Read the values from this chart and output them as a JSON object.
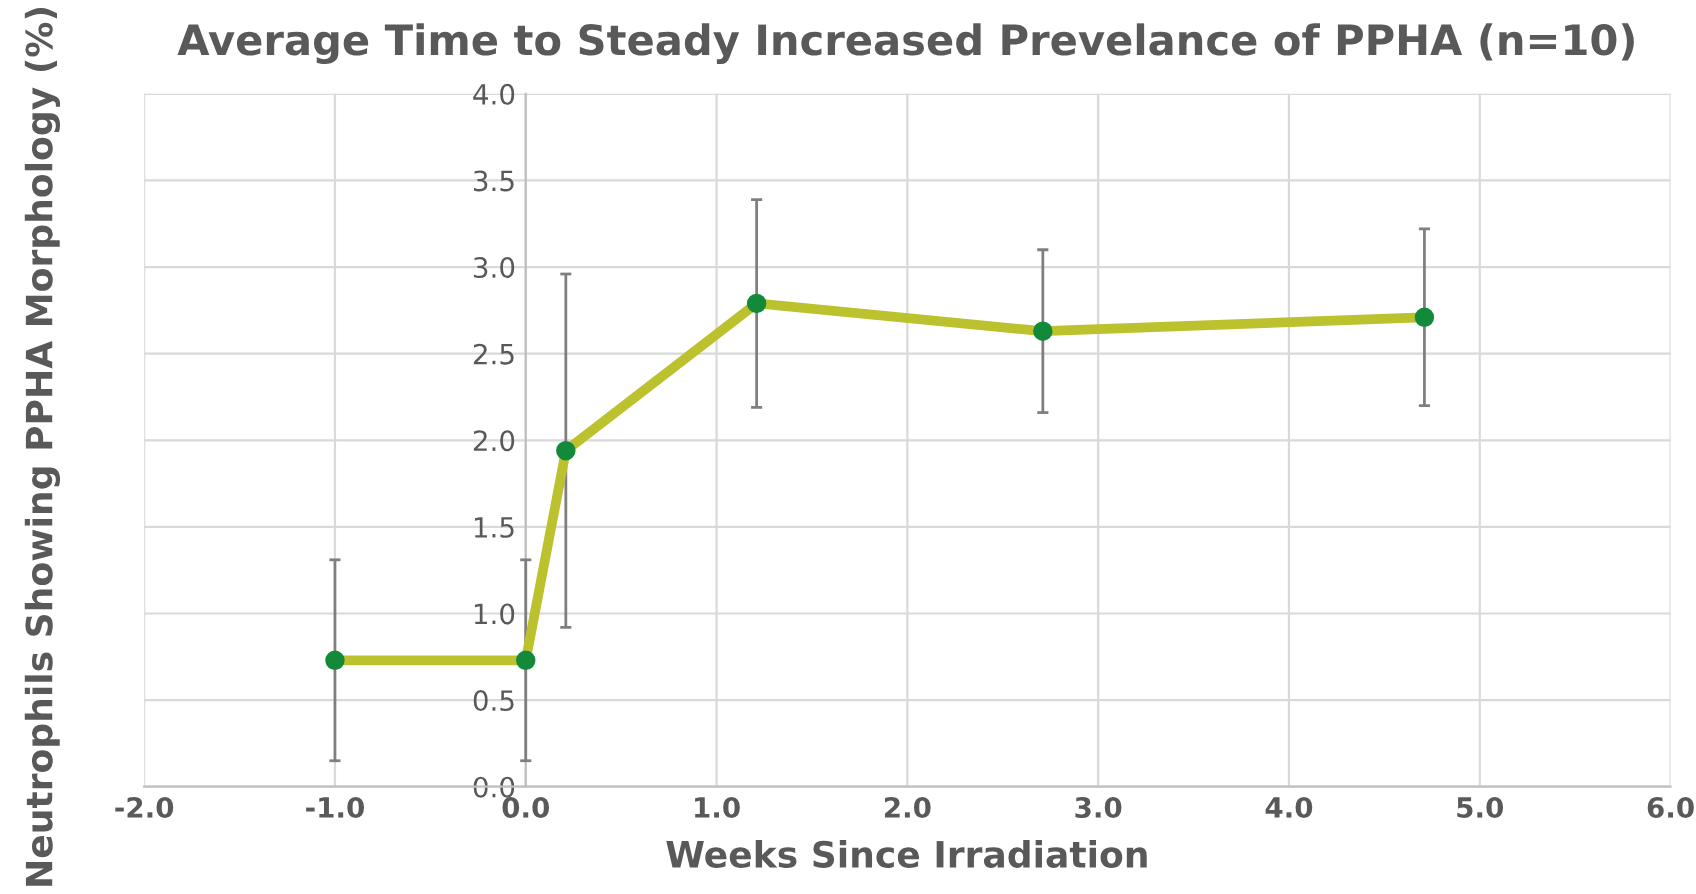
{
  "chart_data": {
    "type": "line",
    "title": "Average Time to Steady Increased Prevelance of PPHA (n=10)",
    "xlabel": "Weeks Since Irradiation",
    "ylabel": "Neutrophils Showing PPHA Morphology (%)",
    "x": [
      -1.0,
      0.0,
      0.21,
      1.21,
      2.71,
      4.71
    ],
    "series": [
      {
        "color": "#bcc12e",
        "values": [
          0.73,
          0.73,
          1.94,
          2.79,
          2.63,
          2.71
        ],
        "errors": [
          0.58,
          0.58,
          1.02,
          0.6,
          0.47,
          0.51
        ]
      }
    ],
    "marker": "circle",
    "line_style": "solid",
    "grid": true,
    "legend": false,
    "xlim": [
      -2,
      6
    ],
    "xticks": [
      {
        "value": -2,
        "label": "-2.0"
      },
      {
        "value": -1,
        "label": "-1.0"
      },
      {
        "value": 0,
        "label": "0.0"
      },
      {
        "value": 1,
        "label": "1.0"
      },
      {
        "value": 2,
        "label": "2.0"
      },
      {
        "value": 3,
        "label": "3.0"
      },
      {
        "value": 4,
        "label": "4.0"
      },
      {
        "value": 5,
        "label": "5.0"
      },
      {
        "value": 6,
        "label": "6.0"
      }
    ],
    "ylim": [
      0,
      4
    ],
    "yticks": [
      {
        "value": 0,
        "label": "0.0"
      },
      {
        "value": 0.5,
        "label": "0.5"
      },
      {
        "value": 1,
        "label": "1.0"
      },
      {
        "value": 1.5,
        "label": "1.5"
      },
      {
        "value": 2,
        "label": "2.0"
      },
      {
        "value": 2.5,
        "label": "2.5"
      },
      {
        "value": 3,
        "label": "3.0"
      },
      {
        "value": 3.5,
        "label": "3.5"
      },
      {
        "value": 4,
        "label": "4.0"
      }
    ]
  }
}
